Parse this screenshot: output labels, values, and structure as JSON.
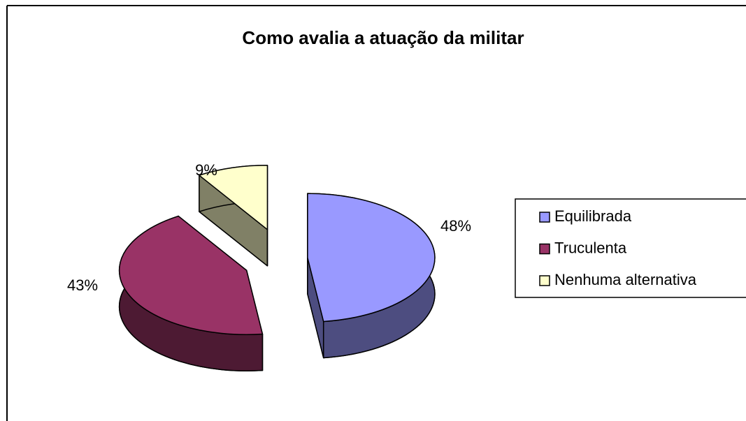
{
  "chart_data": {
    "type": "pie",
    "title": "Como avalia a atuação da militar",
    "categories": [
      "Equilibrada",
      "Truculenta",
      "Nenhuma alternativa"
    ],
    "values": [
      48,
      43,
      9
    ],
    "value_labels": [
      "48%",
      "43%",
      "9%"
    ],
    "colors": [
      "#9999ff",
      "#993366",
      "#ffffcc"
    ],
    "legend": "right"
  }
}
